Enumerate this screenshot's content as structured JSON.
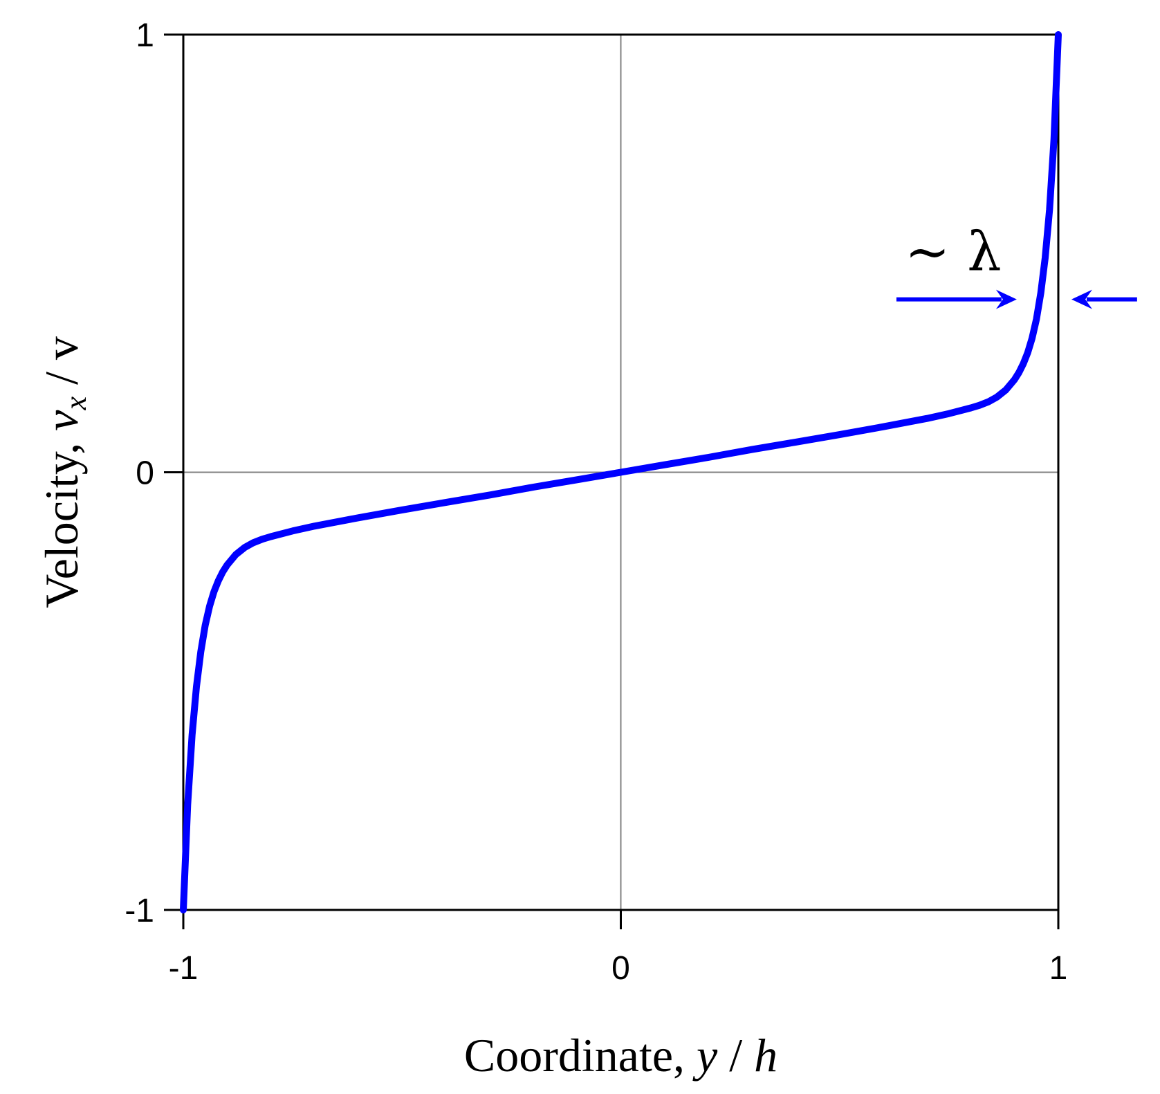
{
  "chart_data": {
    "type": "line",
    "title": "",
    "xlabel": {
      "prefix": "Coordinate, ",
      "var1": "y",
      "sep": " / ",
      "var2": "h"
    },
    "ylabel": {
      "prefix": "Velocity, ",
      "var": "v",
      "sub": "x",
      "suffix": " / v"
    },
    "xlim": [
      -1,
      1
    ],
    "ylim": [
      -1,
      1
    ],
    "xticks": [
      -1,
      0,
      1
    ],
    "yticks": [
      -1,
      0,
      1
    ],
    "xtick_labels": [
      "-1",
      "0",
      "1"
    ],
    "ytick_labels": [
      "-1",
      "0",
      "1"
    ],
    "grid": {
      "x_at": [
        0
      ],
      "y_at": [
        0
      ]
    },
    "series": [
      {
        "color": "#0000ff",
        "x": [
          -1,
          -0.99,
          -0.98,
          -0.97,
          -0.96,
          -0.95,
          -0.94,
          -0.93,
          -0.92,
          -0.91,
          -0.9,
          -0.88,
          -0.86,
          -0.84,
          -0.82,
          -0.8,
          -0.75,
          -0.7,
          -0.6,
          -0.5,
          -0.4,
          -0.3,
          -0.2,
          -0.1,
          0,
          0.1,
          0.2,
          0.3,
          0.4,
          0.5,
          0.6,
          0.7,
          0.75,
          0.8,
          0.82,
          0.84,
          0.86,
          0.88,
          0.9,
          0.91,
          0.92,
          0.93,
          0.94,
          0.95,
          0.96,
          0.97,
          0.98,
          0.99,
          1
        ],
        "y": [
          -1,
          -0.76,
          -0.6,
          -0.49,
          -0.41,
          -0.35,
          -0.306,
          -0.273,
          -0.248,
          -0.228,
          -0.212,
          -0.188,
          -0.172,
          -0.161,
          -0.153,
          -0.147,
          -0.134,
          -0.123,
          -0.104,
          -0.086,
          -0.069,
          -0.052,
          -0.034,
          -0.017,
          0,
          0.017,
          0.034,
          0.052,
          0.069,
          0.086,
          0.104,
          0.123,
          0.134,
          0.147,
          0.153,
          0.161,
          0.172,
          0.188,
          0.212,
          0.228,
          0.248,
          0.273,
          0.306,
          0.35,
          0.41,
          0.49,
          0.6,
          0.76,
          1
        ]
      }
    ],
    "annotations": {
      "lambda_label": "~ λ",
      "arrows": [
        {
          "y": 0.395,
          "from_x": 0.63,
          "to_x": 0.905,
          "direction": "right"
        },
        {
          "y": 0.395,
          "from_x": 1.18,
          "to_x": 1.03,
          "direction": "left"
        }
      ]
    }
  }
}
